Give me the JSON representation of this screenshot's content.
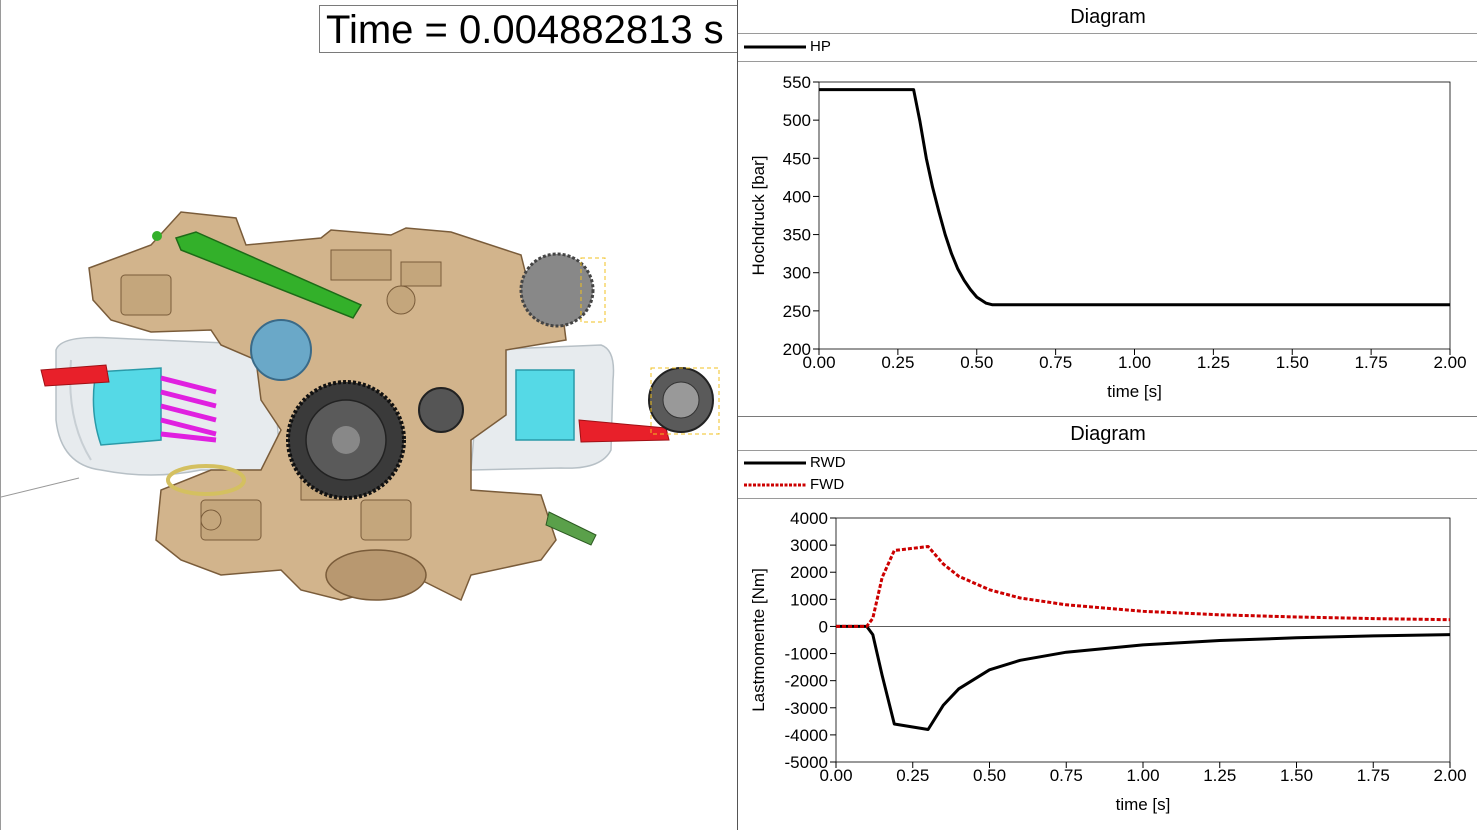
{
  "time_display": {
    "text": "Time = 0.004882813 s"
  },
  "model_view": {
    "description_icon": "gearbox-3d-model-icon"
  },
  "diagrams": [
    {
      "title": "Diagram",
      "legend": [
        {
          "label": "HP",
          "color": "#000000",
          "style": "solid"
        }
      ]
    },
    {
      "title": "Diagram",
      "legend": [
        {
          "label": "RWD",
          "color": "#000000",
          "style": "solid"
        },
        {
          "label": "FWD",
          "color": "#cc0000",
          "style": "dashed"
        }
      ]
    }
  ],
  "chart_data": [
    {
      "type": "line",
      "title": "Diagram",
      "xlabel": "time [s]",
      "ylabel": "Hochdruck [bar]",
      "xlim": [
        0,
        2.0
      ],
      "ylim": [
        200,
        550
      ],
      "xticks": [
        "0.00",
        "0.25",
        "0.50",
        "0.75",
        "1.00",
        "1.25",
        "1.50",
        "1.75",
        "2.00"
      ],
      "yticks": [
        "200",
        "250",
        "300",
        "350",
        "400",
        "450",
        "500",
        "550"
      ],
      "grid": false,
      "legend": "top-left",
      "series": [
        {
          "name": "HP",
          "color": "#000000",
          "x": [
            0.0,
            0.3,
            0.32,
            0.34,
            0.36,
            0.38,
            0.4,
            0.42,
            0.44,
            0.46,
            0.48,
            0.5,
            0.53,
            0.55,
            2.0
          ],
          "y": [
            540,
            540,
            498,
            450,
            412,
            380,
            350,
            325,
            305,
            290,
            278,
            268,
            260,
            258,
            258
          ]
        }
      ]
    },
    {
      "type": "line",
      "title": "Diagram",
      "xlabel": "time [s]",
      "ylabel": "Lastmomente [Nm]",
      "xlim": [
        0,
        2.0
      ],
      "ylim": [
        -5000,
        4000
      ],
      "xticks": [
        "0.00",
        "0.25",
        "0.50",
        "0.75",
        "1.00",
        "1.25",
        "1.50",
        "1.75",
        "2.00"
      ],
      "yticks": [
        "4000",
        "3000",
        "2000",
        "1000",
        "0",
        "-1000",
        "-2000",
        "-3000",
        "-4000",
        "-5000"
      ],
      "grid": false,
      "legend": "top-left",
      "series": [
        {
          "name": "RWD",
          "color": "#000000",
          "style": "solid",
          "x": [
            0.0,
            0.1,
            0.12,
            0.15,
            0.19,
            0.3,
            0.35,
            0.4,
            0.5,
            0.6,
            0.75,
            1.0,
            1.25,
            1.5,
            1.75,
            2.0
          ],
          "y": [
            0,
            0,
            -300,
            -1800,
            -3600,
            -3800,
            -2900,
            -2300,
            -1600,
            -1250,
            -950,
            -680,
            -520,
            -420,
            -350,
            -300
          ]
        },
        {
          "name": "FWD",
          "color": "#cc0000",
          "style": "dashed",
          "x": [
            0.0,
            0.1,
            0.12,
            0.15,
            0.19,
            0.3,
            0.35,
            0.4,
            0.5,
            0.6,
            0.75,
            1.0,
            1.25,
            1.5,
            1.75,
            2.0
          ],
          "y": [
            0,
            0,
            300,
            1800,
            2800,
            2950,
            2300,
            1850,
            1350,
            1050,
            800,
            560,
            430,
            350,
            290,
            250
          ]
        }
      ]
    }
  ]
}
